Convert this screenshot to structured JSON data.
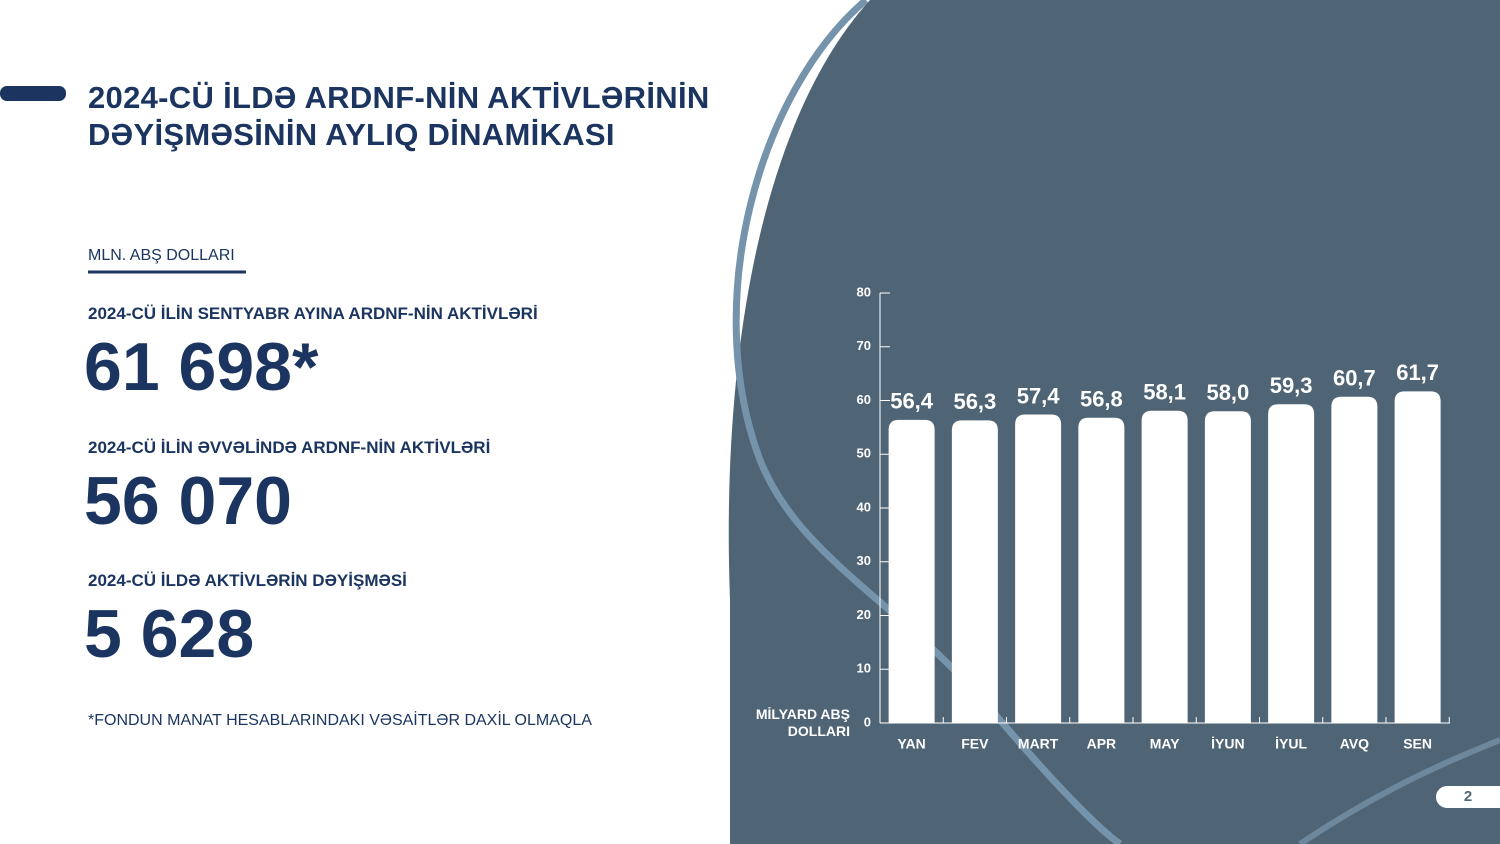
{
  "title_lines": [
    "2024-CÜ İLDƏ ARDNF-NİN AKTİVLƏRİNİN",
    "DƏYİŞMƏSİNİN AYLIQ DİNAMİKASI"
  ],
  "unit_label": "MLN. ABŞ DOLLARI",
  "stats": [
    {
      "label": "2024-CÜ İLİN SENTYABR AYINA ARDNF-NİN AKTİVLƏRİ",
      "value": "61 698*"
    },
    {
      "label": "2024-CÜ İLİN ƏVVƏLİNDƏ ARDNF-NİN AKTİVLƏRİ",
      "value": "56 070"
    },
    {
      "label": "2024-CÜ İLDƏ AKTİVLƏRİN DƏYİŞMƏSİ",
      "value": "5 628"
    }
  ],
  "footnote": "*FONDUN MANAT HESABLARINDAKI VƏSAİTLƏR DAXİL OLMAQLA",
  "page_number": "2",
  "chart_data": {
    "type": "bar",
    "ylabel": "MİLYARD ABŞ DOLLARI",
    "categories": [
      "YAN",
      "FEV",
      "MART",
      "APR",
      "MAY",
      "İYUN",
      "İYUL",
      "AVQ",
      "SEN"
    ],
    "values": [
      56.4,
      56.3,
      57.4,
      56.8,
      58.1,
      58.0,
      59.3,
      60.7,
      61.7
    ],
    "value_labels": [
      "56,4",
      "56,3",
      "57,4",
      "56,8",
      "58,1",
      "58,0",
      "59,3",
      "60,7",
      "61,7"
    ],
    "color": "#ffffff",
    "ylim": [
      0,
      80
    ],
    "yticks": [
      0,
      10,
      20,
      30,
      40,
      50,
      60,
      70,
      80
    ],
    "grid": false
  }
}
